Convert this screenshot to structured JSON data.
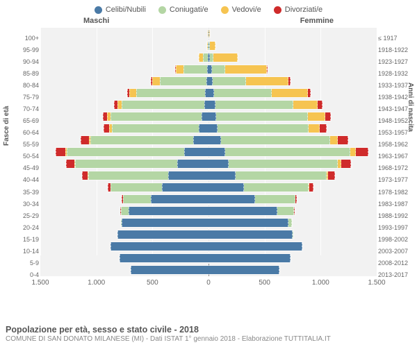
{
  "legend": [
    {
      "label": "Celibi/Nubili",
      "color": "#4a7aa6"
    },
    {
      "label": "Coniugati/e",
      "color": "#b4d6a4"
    },
    {
      "label": "Vedovi/e",
      "color": "#f6c451"
    },
    {
      "label": "Divorziati/e",
      "color": "#cf2b2b"
    }
  ],
  "headers": {
    "male": "Maschi",
    "female": "Femmine"
  },
  "axis": {
    "left_title": "Fasce di età",
    "right_title": "Anni di nascita"
  },
  "chart": {
    "type": "population-pyramid",
    "max": 1500,
    "xticks": [
      1500,
      1000,
      500,
      0,
      500,
      1000,
      1500
    ],
    "xticklabels": [
      "1.500",
      "1.000",
      "500",
      "0",
      "500",
      "1.000",
      "1.500"
    ],
    "row_height_pct": 4.76,
    "background_color": "#f2f2f2",
    "segment_order": [
      "celibi",
      "coniugati",
      "vedovi",
      "divorziati"
    ],
    "rows": [
      {
        "age": "100+",
        "birth": "≤ 1917",
        "m": {
          "celibi": 0,
          "coniugati": 0,
          "vedovi": 5,
          "divorziati": 0
        },
        "f": {
          "celibi": 2,
          "coniugati": 0,
          "vedovi": 18,
          "divorziati": 0
        }
      },
      {
        "age": "95-99",
        "birth": "1918-1922",
        "m": {
          "celibi": 0,
          "coniugati": 5,
          "vedovi": 15,
          "divorziati": 0
        },
        "f": {
          "celibi": 3,
          "coniugati": 3,
          "vedovi": 60,
          "divorziati": 0
        }
      },
      {
        "age": "90-94",
        "birth": "1923-1927",
        "m": {
          "celibi": 5,
          "coniugati": 50,
          "vedovi": 40,
          "divorziati": 0
        },
        "f": {
          "celibi": 15,
          "coniugati": 30,
          "vedovi": 220,
          "divorziati": 0
        }
      },
      {
        "age": "85-89",
        "birth": "1928-1932",
        "m": {
          "celibi": 10,
          "coniugati": 220,
          "vedovi": 70,
          "divorziati": 5
        },
        "f": {
          "celibi": 30,
          "coniugati": 120,
          "vedovi": 380,
          "divorziati": 5
        }
      },
      {
        "age": "80-84",
        "birth": "1933-1937",
        "m": {
          "celibi": 20,
          "coniugati": 420,
          "vedovi": 70,
          "divorziati": 10
        },
        "f": {
          "celibi": 40,
          "coniugati": 300,
          "vedovi": 380,
          "divorziati": 15
        }
      },
      {
        "age": "75-79",
        "birth": "1938-1942",
        "m": {
          "celibi": 30,
          "coniugati": 620,
          "vedovi": 60,
          "divorziati": 20
        },
        "f": {
          "celibi": 50,
          "coniugati": 520,
          "vedovi": 320,
          "divorziati": 25
        }
      },
      {
        "age": "70-74",
        "birth": "1943-1947",
        "m": {
          "celibi": 40,
          "coniugati": 740,
          "vedovi": 40,
          "divorziati": 30
        },
        "f": {
          "celibi": 60,
          "coniugati": 700,
          "vedovi": 220,
          "divorziati": 40
        }
      },
      {
        "age": "65-69",
        "birth": "1948-1952",
        "m": {
          "celibi": 60,
          "coniugati": 820,
          "vedovi": 30,
          "divorziati": 40
        },
        "f": {
          "celibi": 70,
          "coniugati": 820,
          "vedovi": 160,
          "divorziati": 50
        }
      },
      {
        "age": "60-64",
        "birth": "1953-1957",
        "m": {
          "celibi": 90,
          "coniugati": 780,
          "vedovi": 20,
          "divorziati": 50
        },
        "f": {
          "celibi": 80,
          "coniugati": 820,
          "vedovi": 100,
          "divorziati": 60
        }
      },
      {
        "age": "55-59",
        "birth": "1958-1962",
        "m": {
          "celibi": 140,
          "coniugati": 920,
          "vedovi": 15,
          "divorziati": 70
        },
        "f": {
          "celibi": 110,
          "coniugati": 980,
          "vedovi": 70,
          "divorziati": 90
        }
      },
      {
        "age": "50-54",
        "birth": "1963-1967",
        "m": {
          "celibi": 220,
          "coniugati": 1050,
          "vedovi": 10,
          "divorziati": 90
        },
        "f": {
          "celibi": 150,
          "coniugati": 1120,
          "vedovi": 50,
          "divorziati": 110
        }
      },
      {
        "age": "45-49",
        "birth": "1968-1972",
        "m": {
          "celibi": 280,
          "coniugati": 920,
          "vedovi": 5,
          "divorziati": 70
        },
        "f": {
          "celibi": 180,
          "coniugati": 980,
          "vedovi": 30,
          "divorziati": 90
        }
      },
      {
        "age": "40-44",
        "birth": "1973-1977",
        "m": {
          "celibi": 360,
          "coniugati": 720,
          "vedovi": 3,
          "divorziati": 50
        },
        "f": {
          "celibi": 240,
          "coniugati": 820,
          "vedovi": 15,
          "divorziati": 60
        }
      },
      {
        "age": "35-39",
        "birth": "1978-1982",
        "m": {
          "celibi": 420,
          "coniugati": 460,
          "vedovi": 0,
          "divorziati": 25
        },
        "f": {
          "celibi": 320,
          "coniugati": 580,
          "vedovi": 5,
          "divorziati": 35
        }
      },
      {
        "age": "30-34",
        "birth": "1983-1987",
        "m": {
          "celibi": 520,
          "coniugati": 250,
          "vedovi": 0,
          "divorziati": 10
        },
        "f": {
          "celibi": 420,
          "coniugati": 360,
          "vedovi": 0,
          "divorziati": 15
        }
      },
      {
        "age": "25-29",
        "birth": "1988-1992",
        "m": {
          "celibi": 720,
          "coniugati": 70,
          "vedovi": 0,
          "divorziati": 3
        },
        "f": {
          "celibi": 620,
          "coniugati": 150,
          "vedovi": 0,
          "divorziati": 5
        }
      },
      {
        "age": "20-24",
        "birth": "1993-1997",
        "m": {
          "celibi": 780,
          "coniugati": 10,
          "vedovi": 0,
          "divorziati": 0
        },
        "f": {
          "celibi": 720,
          "coniugati": 30,
          "vedovi": 0,
          "divorziati": 0
        }
      },
      {
        "age": "15-19",
        "birth": "1998-2002",
        "m": {
          "celibi": 820,
          "coniugati": 0,
          "vedovi": 0,
          "divorziati": 0
        },
        "f": {
          "celibi": 760,
          "coniugati": 2,
          "vedovi": 0,
          "divorziati": 0
        }
      },
      {
        "age": "10-14",
        "birth": "2003-2007",
        "m": {
          "celibi": 880,
          "coniugati": 0,
          "vedovi": 0,
          "divorziati": 0
        },
        "f": {
          "celibi": 840,
          "coniugati": 0,
          "vedovi": 0,
          "divorziati": 0
        }
      },
      {
        "age": "5-9",
        "birth": "2008-2012",
        "m": {
          "celibi": 800,
          "coniugati": 0,
          "vedovi": 0,
          "divorziati": 0
        },
        "f": {
          "celibi": 740,
          "coniugati": 0,
          "vedovi": 0,
          "divorziati": 0
        }
      },
      {
        "age": "0-4",
        "birth": "2013-2017",
        "m": {
          "celibi": 700,
          "coniugati": 0,
          "vedovi": 0,
          "divorziati": 0
        },
        "f": {
          "celibi": 640,
          "coniugati": 0,
          "vedovi": 0,
          "divorziati": 0
        }
      }
    ]
  },
  "footer": {
    "line1": "Popolazione per età, sesso e stato civile - 2018",
    "line2": "COMUNE DI SAN DONATO MILANESE (MI) - Dati ISTAT 1° gennaio 2018 - Elaborazione TUTTITALIA.IT"
  }
}
